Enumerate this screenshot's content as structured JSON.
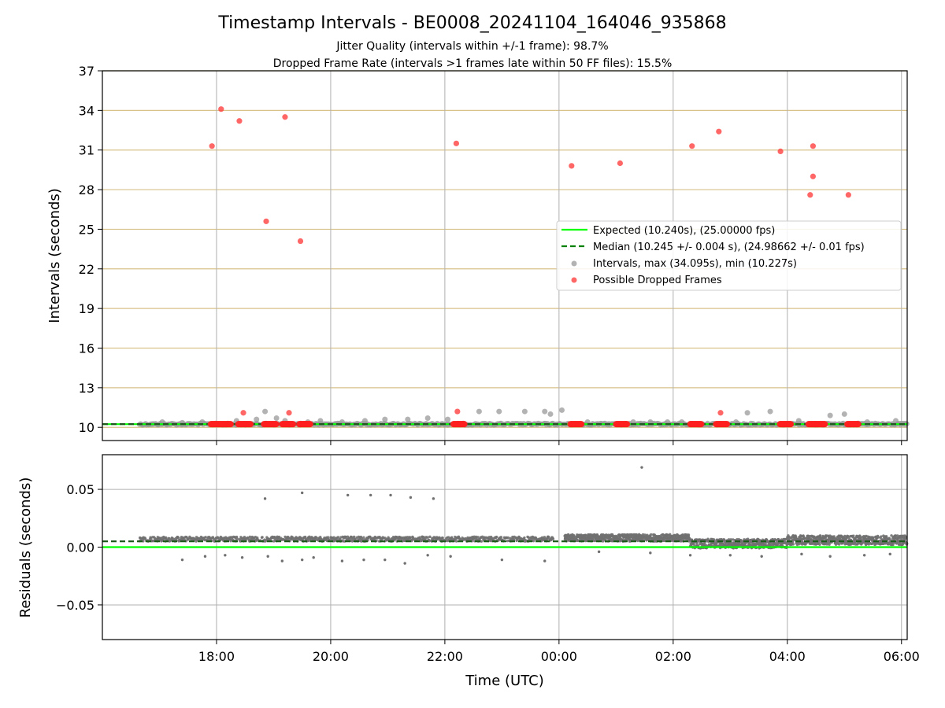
{
  "chart_data": {
    "type": "scatter",
    "title": "Timestamp Intervals - BE0008_20241104_164046_935868",
    "subtitle_1": "Jitter Quality (intervals within +/-1 frame): 98.7%",
    "subtitle_2": "Dropped Frame Rate (intervals >1 frames late within 50 FF files): 15.5%",
    "xlabel": "Time (UTC)",
    "x_range_hours": [
      16.0,
      30.1
    ],
    "x_ticks": [
      {
        "value": 18,
        "label": "18:00"
      },
      {
        "value": 20,
        "label": "20:00"
      },
      {
        "value": 22,
        "label": "22:00"
      },
      {
        "value": 24,
        "label": "00:00"
      },
      {
        "value": 26,
        "label": "02:00"
      },
      {
        "value": 28,
        "label": "04:00"
      },
      {
        "value": 30,
        "label": "06:00"
      }
    ],
    "top": {
      "ylabel": "Intervals (seconds)",
      "ylim": [
        9.0,
        37.0
      ],
      "yticks": [
        10,
        13,
        16,
        19,
        22,
        25,
        28,
        31,
        34,
        37
      ],
      "grid_color": "#d8c28a",
      "expected_interval": 10.24,
      "median_interval": 10.245,
      "series_start": 16.65,
      "series_end": 30.1,
      "legend": {
        "placement": "center-right",
        "entries": [
          {
            "label": "Expected (10.240s), (25.00000 fps)",
            "kind": "line",
            "color": "#00ff00",
            "style": "solid"
          },
          {
            "label": "Median (10.245 +/- 0.004 s), (24.98662 +/- 0.01 fps)",
            "kind": "line",
            "color": "#008000",
            "style": "dashed"
          },
          {
            "label": "Intervals, max (34.095s), min (10.227s)",
            "kind": "marker",
            "color": "#999999"
          },
          {
            "label": "Possible Dropped Frames",
            "kind": "marker",
            "color": "#ff4040"
          }
        ]
      },
      "dropped_frames": [
        {
          "x": 17.92,
          "y": 31.3
        },
        {
          "x": 18.08,
          "y": 34.1
        },
        {
          "x": 18.4,
          "y": 33.2
        },
        {
          "x": 18.47,
          "y": 11.1
        },
        {
          "x": 18.87,
          "y": 25.6
        },
        {
          "x": 19.2,
          "y": 33.5
        },
        {
          "x": 19.27,
          "y": 11.1
        },
        {
          "x": 19.47,
          "y": 24.1
        },
        {
          "x": 22.2,
          "y": 31.5
        },
        {
          "x": 22.22,
          "y": 11.2
        },
        {
          "x": 24.22,
          "y": 29.8
        },
        {
          "x": 25.07,
          "y": 30.0
        },
        {
          "x": 26.33,
          "y": 31.3
        },
        {
          "x": 26.8,
          "y": 32.4
        },
        {
          "x": 26.83,
          "y": 11.1
        },
        {
          "x": 27.88,
          "y": 30.9
        },
        {
          "x": 28.4,
          "y": 27.6
        },
        {
          "x": 28.45,
          "y": 29.0
        },
        {
          "x": 28.45,
          "y": 31.3
        },
        {
          "x": 29.07,
          "y": 27.6
        }
      ],
      "dropped_clusters": [
        {
          "x_start": 17.9,
          "x_end": 18.25,
          "y": 10.24
        },
        {
          "x_start": 18.38,
          "y": 10.24,
          "x_end": 18.6
        },
        {
          "x_start": 18.83,
          "x_end": 19.05,
          "y": 10.24
        },
        {
          "x_start": 19.15,
          "x_end": 19.35,
          "y": 10.24
        },
        {
          "x_start": 19.45,
          "x_end": 19.65,
          "y": 10.24
        },
        {
          "x_start": 22.15,
          "x_end": 22.35,
          "y": 10.24
        },
        {
          "x_start": 24.2,
          "x_end": 24.4,
          "y": 10.24
        },
        {
          "x_start": 25.0,
          "x_end": 25.2,
          "y": 10.24
        },
        {
          "x_start": 26.3,
          "x_end": 26.5,
          "y": 10.24
        },
        {
          "x_start": 26.75,
          "x_end": 26.95,
          "y": 10.24
        },
        {
          "x_start": 27.87,
          "x_end": 28.07,
          "y": 10.24
        },
        {
          "x_start": 28.37,
          "x_end": 28.67,
          "y": 10.24
        },
        {
          "x_start": 29.05,
          "x_end": 29.25,
          "y": 10.24
        }
      ],
      "elevated_intervals": [
        {
          "x": 17.05,
          "y": 10.4
        },
        {
          "x": 17.4,
          "y": 10.35
        },
        {
          "x": 17.75,
          "y": 10.4
        },
        {
          "x": 18.35,
          "y": 10.5
        },
        {
          "x": 18.7,
          "y": 10.6
        },
        {
          "x": 18.85,
          "y": 11.2
        },
        {
          "x": 19.05,
          "y": 10.7
        },
        {
          "x": 19.2,
          "y": 10.5
        },
        {
          "x": 19.6,
          "y": 10.4
        },
        {
          "x": 19.82,
          "y": 10.5
        },
        {
          "x": 20.2,
          "y": 10.4
        },
        {
          "x": 20.6,
          "y": 10.5
        },
        {
          "x": 20.95,
          "y": 10.6
        },
        {
          "x": 21.35,
          "y": 10.6
        },
        {
          "x": 21.7,
          "y": 10.7
        },
        {
          "x": 22.05,
          "y": 10.6
        },
        {
          "x": 22.6,
          "y": 11.2
        },
        {
          "x": 22.95,
          "y": 11.2
        },
        {
          "x": 23.4,
          "y": 11.2
        },
        {
          "x": 23.75,
          "y": 11.2
        },
        {
          "x": 23.85,
          "y": 11.0
        },
        {
          "x": 24.05,
          "y": 11.3
        },
        {
          "x": 24.5,
          "y": 10.4
        },
        {
          "x": 25.3,
          "y": 10.4
        },
        {
          "x": 25.6,
          "y": 10.4
        },
        {
          "x": 25.9,
          "y": 10.4
        },
        {
          "x": 26.15,
          "y": 10.4
        },
        {
          "x": 27.1,
          "y": 10.4
        },
        {
          "x": 27.3,
          "y": 11.1
        },
        {
          "x": 27.7,
          "y": 11.2
        },
        {
          "x": 28.2,
          "y": 10.5
        },
        {
          "x": 28.75,
          "y": 10.9
        },
        {
          "x": 29.0,
          "y": 11.0
        },
        {
          "x": 29.4,
          "y": 10.4
        },
        {
          "x": 29.9,
          "y": 10.5
        }
      ]
    },
    "bottom": {
      "ylabel": "Residuals (seconds)",
      "ylim": [
        -0.08,
        0.08
      ],
      "yticks": [
        {
          "value": 0.05,
          "label": "0.05"
        },
        {
          "value": 0.0,
          "label": "0.00"
        },
        {
          "value": -0.05,
          "label": "−0.05"
        }
      ],
      "expected_residual": 0.0,
      "median_residual": 0.005,
      "residual_bands": [
        {
          "x_start": 16.65,
          "x_end": 23.9,
          "center": 0.007,
          "spread": 0.002
        },
        {
          "x_start": 24.1,
          "x_end": 26.3,
          "center": 0.008,
          "spread": 0.003
        },
        {
          "x_start": 26.3,
          "x_end": 28.0,
          "center": 0.003,
          "spread": 0.004
        },
        {
          "x_start": 28.0,
          "x_end": 30.1,
          "center": 0.006,
          "spread": 0.004
        }
      ],
      "outliers": [
        {
          "x": 18.85,
          "y": 0.042
        },
        {
          "x": 19.5,
          "y": 0.047
        },
        {
          "x": 20.3,
          "y": 0.045
        },
        {
          "x": 20.7,
          "y": 0.045
        },
        {
          "x": 21.05,
          "y": 0.045
        },
        {
          "x": 21.4,
          "y": 0.043
        },
        {
          "x": 21.8,
          "y": 0.042
        },
        {
          "x": 25.45,
          "y": 0.069
        },
        {
          "x": 17.4,
          "y": -0.011
        },
        {
          "x": 17.8,
          "y": -0.008
        },
        {
          "x": 18.15,
          "y": -0.007
        },
        {
          "x": 18.45,
          "y": -0.009
        },
        {
          "x": 18.9,
          "y": -0.008
        },
        {
          "x": 19.15,
          "y": -0.012
        },
        {
          "x": 19.5,
          "y": -0.011
        },
        {
          "x": 19.7,
          "y": -0.009
        },
        {
          "x": 20.2,
          "y": -0.012
        },
        {
          "x": 20.58,
          "y": -0.011
        },
        {
          "x": 20.95,
          "y": -0.011
        },
        {
          "x": 21.3,
          "y": -0.014
        },
        {
          "x": 21.7,
          "y": -0.007
        },
        {
          "x": 22.1,
          "y": -0.008
        },
        {
          "x": 23.0,
          "y": -0.011
        },
        {
          "x": 23.75,
          "y": -0.012
        },
        {
          "x": 24.7,
          "y": -0.004
        },
        {
          "x": 25.6,
          "y": -0.005
        },
        {
          "x": 26.3,
          "y": -0.007
        },
        {
          "x": 27.0,
          "y": -0.007
        },
        {
          "x": 27.55,
          "y": -0.008
        },
        {
          "x": 28.25,
          "y": -0.006
        },
        {
          "x": 28.75,
          "y": -0.008
        },
        {
          "x": 29.35,
          "y": -0.007
        },
        {
          "x": 29.8,
          "y": -0.006
        }
      ]
    }
  }
}
